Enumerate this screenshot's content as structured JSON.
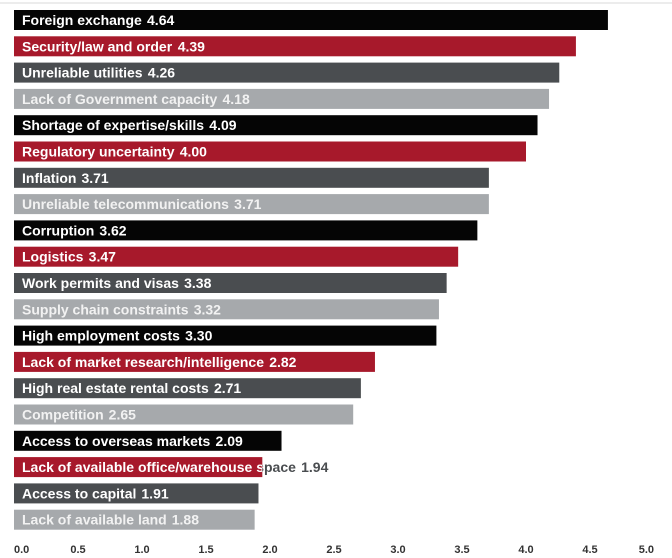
{
  "chart_data": {
    "type": "bar",
    "orientation": "horizontal",
    "title": "",
    "xlabel": "",
    "ylabel": "",
    "xlim": [
      0,
      5.0
    ],
    "grid": false,
    "legend": "none",
    "palette": [
      "#050505",
      "#a7192b",
      "#4a4d50",
      "#a6a9ac"
    ],
    "categories": [
      "Foreign exchange",
      "Security/law and order",
      "Unreliable utilities",
      "Lack of Government capacity",
      "Shortage of expertise/skills",
      "Regulatory uncertainty",
      "Inflation",
      "Unreliable telecommunications",
      "Corruption",
      "Logistics",
      "Work permits and visas",
      "Supply chain constraints",
      "High employment costs",
      "Lack of market research/intelligence",
      "High real estate rental costs",
      "Competition",
      "Access to overseas markets",
      "Lack of available office/warehouse space",
      "Access to capital",
      "Lack of available land"
    ],
    "values": [
      4.64,
      4.39,
      4.26,
      4.18,
      4.09,
      4.0,
      3.71,
      3.71,
      3.62,
      3.47,
      3.38,
      3.32,
      3.3,
      2.82,
      2.71,
      2.65,
      2.09,
      1.94,
      1.91,
      1.88
    ],
    "value_labels": [
      "4.64",
      "4.39",
      "4.26",
      "4.18",
      "4.09",
      "4.00",
      "3.71",
      "3.71",
      "3.62",
      "3.47",
      "3.38",
      "3.32",
      "3.30",
      "2.82",
      "2.71",
      "2.65",
      "2.09",
      "1.94",
      "1.91",
      "1.88"
    ],
    "xticks": [
      "0.0",
      "0.5",
      "1.0",
      "1.5",
      "2.0",
      "2.5",
      "3.0",
      "3.5",
      "4.0",
      "4.5",
      "5.0"
    ]
  }
}
